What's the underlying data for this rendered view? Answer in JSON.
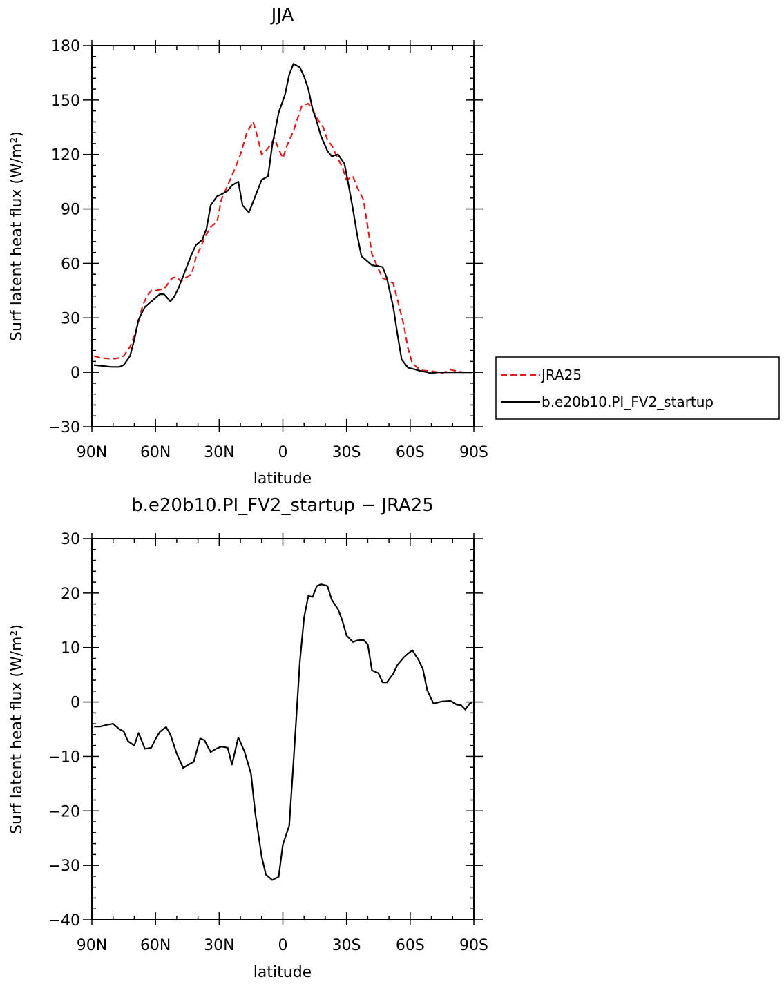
{
  "chart_data": [
    {
      "type": "line",
      "title": "JJA",
      "xlabel": "latitude",
      "ylabel": "Surf latent heat flux (W/m²)",
      "xlim": [
        90,
        -90
      ],
      "ylim": [
        -30,
        180
      ],
      "xticks": [
        90,
        60,
        30,
        0,
        -30,
        -60,
        -90
      ],
      "xtick_labels": [
        "90N",
        "60N",
        "30N",
        "0",
        "30S",
        "60S",
        "90S"
      ],
      "yticks": [
        -30,
        0,
        30,
        60,
        90,
        120,
        150,
        180
      ],
      "ytick_labels": [
        "−30",
        "0",
        "30",
        "60",
        "90",
        "120",
        "150",
        "180"
      ],
      "legend_position": "right",
      "series": [
        {
          "name": "JRA25",
          "color": "#e41a1c",
          "dash": "dashed",
          "x": [
            89,
            86,
            82,
            79,
            77,
            75,
            72,
            70,
            68,
            66,
            64,
            62,
            60,
            58,
            56,
            54,
            52,
            50,
            48,
            46,
            43,
            41,
            38,
            36,
            34,
            31,
            29,
            26,
            23,
            20,
            17,
            14,
            12,
            10,
            8,
            6,
            4,
            2,
            0,
            -2,
            -5,
            -7,
            -9,
            -12,
            -14,
            -16,
            -19,
            -21,
            -23,
            -25,
            -28,
            -30,
            -33,
            -35,
            -38,
            -40,
            -42,
            -45,
            -47,
            -49,
            -52,
            -54,
            -57,
            -59,
            -61,
            -64,
            -66,
            -68,
            -71,
            -75,
            -79,
            -82,
            -85,
            -89
          ],
          "y": [
            9,
            8,
            7.5,
            7.5,
            8,
            9,
            14,
            20,
            28,
            37,
            42,
            45,
            45,
            45.5,
            46,
            49,
            52,
            52.5,
            50,
            52,
            54,
            63,
            71,
            76,
            80,
            83,
            95,
            103,
            111,
            120,
            132,
            138,
            130,
            120,
            122,
            125,
            129,
            123,
            118,
            125,
            133,
            140,
            147,
            148,
            145,
            140,
            135,
            128,
            125,
            120,
            113,
            106,
            108,
            102,
            95,
            80,
            65,
            57,
            52,
            51,
            49,
            40,
            26,
            13,
            5,
            2,
            1,
            0.8,
            0.5,
            -0.5,
            1.5,
            0.5,
            0,
            0
          ]
        },
        {
          "name": "b.e20b10.PI_FV2_startup",
          "color": "#000000",
          "dash": "solid",
          "x": [
            89,
            85,
            81,
            77,
            75,
            72,
            70,
            68,
            65,
            63,
            61,
            58,
            56,
            53,
            51,
            49,
            46,
            43,
            41,
            38,
            36,
            34,
            31,
            29,
            26,
            24,
            21,
            19,
            16,
            12,
            10,
            7,
            5,
            2,
            -1,
            -3,
            -5,
            -8,
            -10,
            -12,
            -14,
            -16,
            -18,
            -21,
            -23,
            -26,
            -29,
            -31,
            -33,
            -35,
            -37,
            -40,
            -42,
            -45,
            -47,
            -49,
            -52,
            -54,
            -56,
            -59,
            -61,
            -64,
            -66,
            -68,
            -70,
            -73,
            -75,
            -80,
            -84,
            -89
          ],
          "y": [
            4,
            3.5,
            3,
            3,
            4,
            9,
            18,
            29,
            36,
            38,
            40,
            43,
            43,
            39,
            42,
            47,
            56,
            65,
            70,
            73,
            79,
            92,
            97,
            98,
            100,
            103,
            105,
            92,
            88,
            100,
            106,
            108,
            125,
            143,
            153,
            164,
            170,
            168,
            163,
            156,
            145,
            138,
            130,
            122,
            119,
            120,
            115,
            103,
            90,
            76,
            64,
            61,
            59,
            58.5,
            58,
            52,
            36,
            21,
            7,
            2.5,
            2,
            1,
            0.5,
            0,
            -0.5,
            0,
            0,
            0,
            0,
            0
          ]
        }
      ]
    },
    {
      "type": "line",
      "title": "b.e20b10.PI_FV2_startup − JRA25",
      "xlabel": "latitude",
      "ylabel": "Surf latent heat flux (W/m²)",
      "xlim": [
        90,
        -90
      ],
      "ylim": [
        -40,
        30
      ],
      "xticks": [
        90,
        60,
        30,
        0,
        -30,
        -60,
        -90
      ],
      "xtick_labels": [
        "90N",
        "60N",
        "30N",
        "0",
        "30S",
        "60S",
        "90S"
      ],
      "yticks": [
        -40,
        -30,
        -20,
        -10,
        0,
        10,
        20,
        30
      ],
      "ytick_labels": [
        "−40",
        "−30",
        "−20",
        "−10",
        "0",
        "10",
        "20",
        "30"
      ],
      "series": [
        {
          "color": "#000000",
          "dash": "solid",
          "x": [
            89,
            86,
            83,
            80,
            77,
            75,
            73,
            70,
            68,
            65,
            62,
            60,
            58,
            55,
            53,
            50,
            47,
            44,
            42,
            39,
            37,
            34,
            31,
            29,
            26,
            24,
            21,
            18,
            15,
            13,
            10,
            8,
            5,
            2,
            0,
            -3,
            -5,
            -8,
            -10,
            -12,
            -14,
            -16,
            -18,
            -21,
            -23,
            -26,
            -28,
            -30,
            -33,
            -35,
            -38,
            -40,
            -42,
            -45,
            -47,
            -49,
            -52,
            -54,
            -57,
            -59,
            -61,
            -64,
            -66,
            -68,
            -71,
            -75,
            -79,
            -82,
            -84,
            -86,
            -88,
            -89
          ],
          "y": [
            -4.5,
            -4.5,
            -4.2,
            -4,
            -5,
            -5.4,
            -7.2,
            -8,
            -5.7,
            -8.6,
            -8.4,
            -6.8,
            -5.5,
            -4.6,
            -6,
            -9.5,
            -12.1,
            -11.4,
            -11,
            -6.7,
            -7,
            -9.2,
            -8.5,
            -8.2,
            -8.4,
            -11.5,
            -6.5,
            -9.2,
            -13.2,
            -20.5,
            -28.4,
            -31.7,
            -32.7,
            -32.1,
            -26.2,
            -22.7,
            -11,
            7.4,
            15.5,
            19.5,
            19.3,
            21.3,
            21.6,
            21.3,
            18.8,
            17,
            15,
            12.2,
            11,
            11.3,
            11.4,
            10.6,
            5.8,
            5.3,
            3.6,
            3.6,
            5.2,
            6.8,
            8.2,
            8.9,
            9.5,
            7.7,
            6,
            2.2,
            -0.3,
            0.1,
            0.2,
            -0.5,
            -0.6,
            -1.4,
            -0.3,
            -0.2
          ]
        }
      ]
    }
  ],
  "legend": {
    "entries": [
      "JRA25",
      "b.e20b10.PI_FV2_startup"
    ]
  }
}
